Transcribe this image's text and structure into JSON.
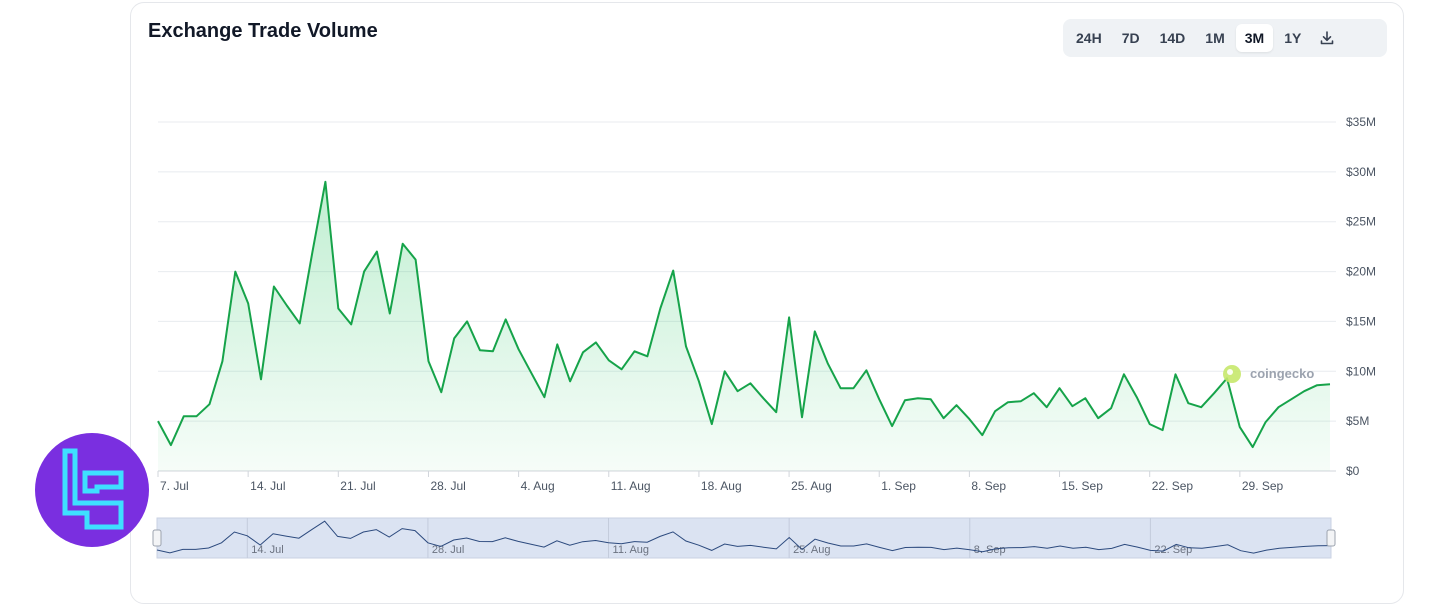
{
  "header": {
    "title": "Exchange Trade Volume"
  },
  "range_tabs": [
    "24H",
    "7D",
    "14D",
    "1M",
    "3M",
    "1Y"
  ],
  "active_tab": "3M",
  "toolbar": {
    "download_icon": "download-icon"
  },
  "watermark": "coingecko",
  "colors": {
    "line": "#16a34a",
    "fill": "#22c55e",
    "navigator_line": "#2c4a7e",
    "navigator_fill": "#dbe3f2",
    "logo_bg": "#7a2fe0",
    "logo_fg": "#3ee0ff"
  },
  "chart_data": {
    "type": "area",
    "title": "Exchange Trade Volume",
    "x_tick_labels": [
      "7. Jul",
      "14. Jul",
      "21. Jul",
      "28. Jul",
      "4. Aug",
      "11. Aug",
      "18. Aug",
      "25. Aug",
      "1. Sep",
      "8. Sep",
      "15. Sep",
      "22. Sep",
      "29. Sep"
    ],
    "y_tick_labels": [
      "$0",
      "$5M",
      "$10M",
      "$15M",
      "$20M",
      "$25M",
      "$30M",
      "$35M"
    ],
    "ylim": [
      0,
      35000000
    ],
    "x_start": "2024-07-07",
    "x_end": "2024-10-05",
    "grid": true,
    "series": [
      {
        "values_musd": [
          5.0,
          2.6,
          5.5,
          5.5,
          6.7,
          11.0,
          20.0,
          16.8,
          9.2,
          18.5,
          16.6,
          14.8,
          22.0,
          29.0,
          16.3,
          14.7,
          20.0,
          22.0,
          15.8,
          22.8,
          21.2,
          11.0,
          7.9,
          13.3,
          15.0,
          12.1,
          12.0,
          15.2,
          12.2,
          9.8,
          7.4,
          12.7,
          9.0,
          11.9,
          12.9,
          11.1,
          10.2,
          12.0,
          11.5,
          16.3,
          20.1,
          12.5,
          9.0,
          4.7,
          10.0,
          8.0,
          8.8,
          7.3,
          5.9,
          15.4,
          5.4,
          14.0,
          10.8,
          8.3,
          8.3,
          10.1,
          7.2,
          4.5,
          7.1,
          7.3,
          7.2,
          5.3,
          6.6,
          5.2,
          3.6,
          6.0,
          6.9,
          7.0,
          7.8,
          6.4,
          8.3,
          6.5,
          7.3,
          5.3,
          6.3,
          9.7,
          7.4,
          4.7,
          4.1,
          9.7,
          6.8,
          6.4,
          7.8,
          9.3,
          4.4,
          2.4,
          4.9,
          6.4,
          7.2,
          8.0,
          8.6,
          8.7
        ]
      }
    ]
  }
}
